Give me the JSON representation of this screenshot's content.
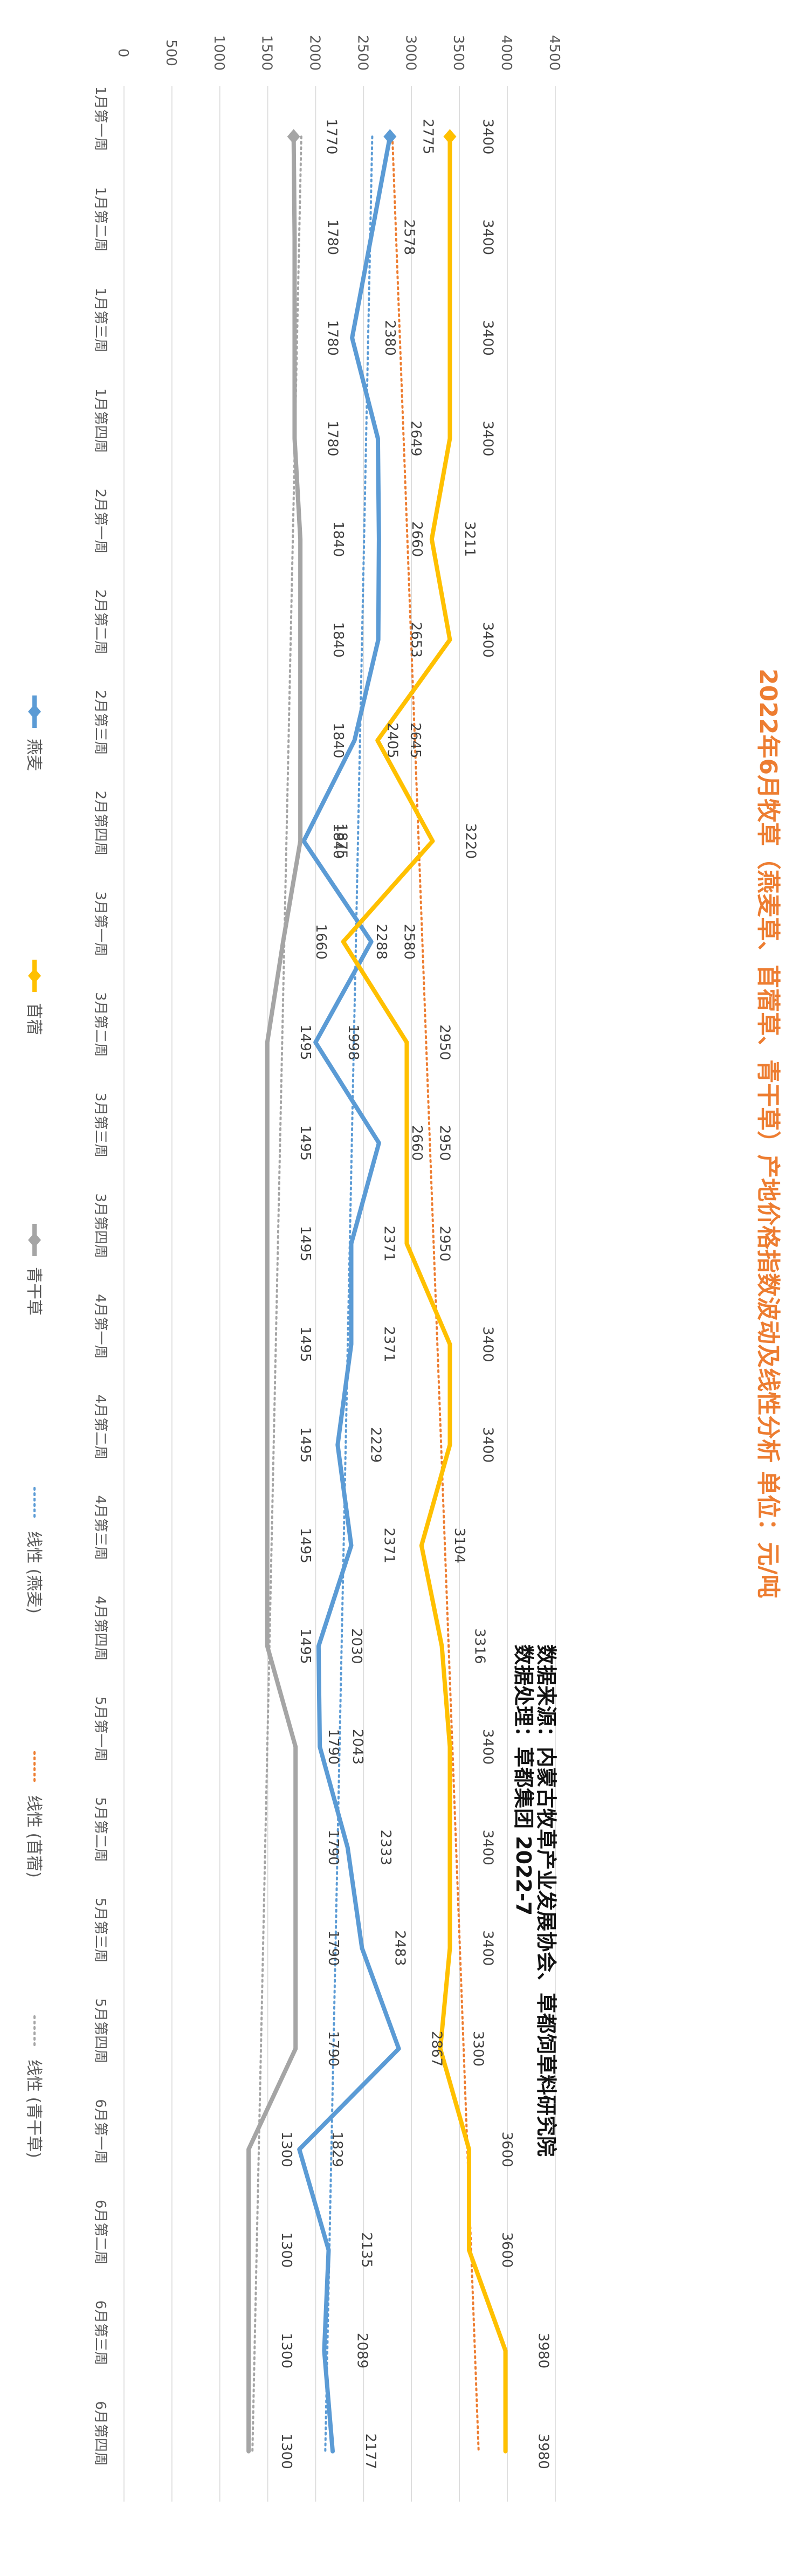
{
  "title": "2022年6月牧草（燕麦草、苜蓿草、青干草）产地价格指数波动及线性分析 单位：元/吨",
  "notes": [
    "数据来源：内蒙古牧草产业发展协会、草都饲草料研究院",
    "数据处理：草都集团 2022-7"
  ],
  "colors": {
    "oat": "#5B9BD5",
    "alfalfa": "#FFC000",
    "hay": "#A5A5A5",
    "alfalfa_trend": "#ED7D31",
    "title": "#ED7D31"
  },
  "chart_data": {
    "type": "line",
    "orientation": "rotated-90-clockwise",
    "categories": [
      "1月第一周",
      "1月第二周",
      "1月第三周",
      "1月第四周",
      "2月第一周",
      "2月第二周",
      "2月第三周",
      "2月第四周",
      "3月第一周",
      "3月第二周",
      "3月第三周",
      "3月第四周",
      "4月第一周",
      "4月第二周",
      "4月第三周",
      "4月第四周",
      "5月第一周",
      "5月第二周",
      "5月第三周",
      "5月第四周",
      "6月第一周",
      "6月第二周",
      "6月第三周",
      "6月第四周"
    ],
    "ylim": [
      0,
      4500
    ],
    "yticks": [
      0,
      500,
      1000,
      1500,
      2000,
      2500,
      3000,
      3500,
      4000,
      4500
    ],
    "grid": true,
    "legend_position": "bottom",
    "series": [
      {
        "name": "燕麦",
        "key": "oat",
        "marker": "diamond",
        "values": [
          2775,
          2578,
          2380,
          2649,
          2660,
          2653,
          2405,
          1875,
          2580,
          1998,
          2660,
          2371,
          2371,
          2229,
          2371,
          2030,
          2043,
          2333,
          2483,
          2867,
          1829,
          2135,
          2089,
          2177
        ],
        "labels": [
          "2775",
          "2578",
          "2380",
          "2649",
          "2660",
          "2653",
          "2405",
          "1875",
          "2580",
          "1998",
          "2660",
          "2371",
          "2371",
          "2229",
          "2371",
          "2030",
          "2043",
          "2333",
          "2483",
          "2867",
          "1829",
          "2135",
          "2089",
          "2177"
        ]
      },
      {
        "name": "苜蓿",
        "key": "alfalfa",
        "marker": "diamond",
        "values": [
          3400,
          3400,
          3400,
          3400,
          3211,
          3400,
          2645,
          3220,
          2288,
          2950,
          2950,
          2950,
          3400,
          3400,
          3104,
          3316,
          3400,
          3400,
          3400,
          3300,
          3600,
          3600,
          3980,
          3980
        ],
        "labels": [
          "3400",
          "3400",
          "3400",
          "3400",
          "3211",
          "3400",
          "2645",
          "3220",
          "2288",
          "2950",
          "2950",
          "2950",
          "3400",
          "3400",
          "3104",
          "3316",
          "3400",
          "3400",
          "3400",
          "3300",
          "3600",
          "3600",
          "3980",
          "3980"
        ]
      },
      {
        "name": "青干草",
        "key": "hay",
        "marker": "diamond",
        "values": [
          1770,
          1780,
          1780,
          1780,
          1840,
          1840,
          1840,
          1840,
          1660,
          1495,
          1495,
          1495,
          1495,
          1495,
          1495,
          1495,
          1790,
          1790,
          1790,
          1790,
          1300,
          1300,
          1300,
          1300
        ],
        "labels": [
          "1770",
          "1780",
          "1780",
          "1780",
          "1840",
          "1840",
          "1840",
          "1840",
          "1660",
          "1495",
          "1495",
          "1495",
          "1495",
          "1495",
          "1495",
          "1495",
          "1790",
          "1790",
          "1790",
          "1790",
          "1300",
          "1300",
          "1300",
          "1300"
        ]
      }
    ],
    "trendlines": [
      {
        "name": "线性 (燕麦)",
        "key": "oat",
        "start": 2590,
        "end": 2100
      },
      {
        "name": "线性 (苜蓿)",
        "key": "alfalfa_trend",
        "start": 2800,
        "end": 3700
      },
      {
        "name": "线性 (青干草)",
        "key": "hay",
        "start": 1850,
        "end": 1340
      }
    ]
  }
}
